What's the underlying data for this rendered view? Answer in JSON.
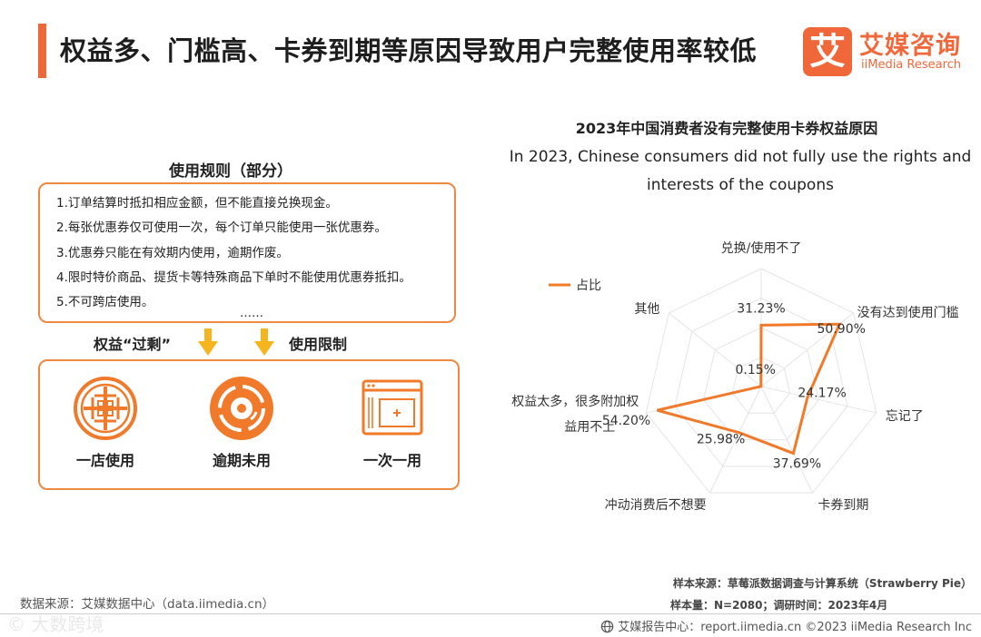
{
  "header": {
    "title": "权益多、门槛高、卡券到期等原因导致用户完整使用率较低",
    "accent_color": "#f0673a"
  },
  "logo": {
    "mark": "艾",
    "name_cn": "艾媒咨询",
    "name_en": "iiMedia Research"
  },
  "rules": {
    "title": "使用规则（部分）",
    "items": [
      "1.订单结算时抵扣相应金额，但不能直接兑换现金。",
      "2.每张优惠券仅可使用一次，每个订单只能使用一张优惠券。",
      "3.优惠券只能在有效期内使用，逾期作废。",
      "4.限时特价商品、提货卡等特殊商品下单时不能使用优惠券抵扣。",
      "5.不可跨店使用。"
    ],
    "more": "……"
  },
  "labels": {
    "left": "权益“过剩”",
    "right": "使用限制"
  },
  "limits": [
    {
      "label": "一店使用",
      "icon": "store-pattern-icon"
    },
    {
      "label": "逾期未用",
      "icon": "expired-disc-icon"
    },
    {
      "label": "一次一用",
      "icon": "single-use-window-icon"
    }
  ],
  "chart_data": {
    "type": "radar",
    "title": "2023年中国消费者没有完整使用卡券权益原因",
    "subtitle": "In 2023, Chinese consumers did not fully use the rights and interests of the coupons",
    "categories": [
      "兑换/使用不了",
      "没有达到使用门槛",
      "忘记了",
      "卡券到期",
      "冲动消费后不想要",
      "权益太多，很多附加权益用不上",
      "其他"
    ],
    "series": [
      {
        "name": "占比",
        "values": [
          31.23,
          50.9,
          24.17,
          37.69,
          25.98,
          54.2,
          0.15
        ],
        "color": "#f07a2a"
      }
    ],
    "value_labels": [
      "31.23%",
      "50.90%",
      "24.17%",
      "37.69%",
      "25.98%",
      "54.20%",
      "0.15%"
    ],
    "rmax": 60,
    "legend_position": "top-left",
    "grid": true
  },
  "footer": {
    "data_source": "数据来源：艾媒数据中心（data.iimedia.cn）",
    "sample_source": "样本来源：草莓派数据调查与计算系统（Strawberry Pie）",
    "sample_info": "样本量：N=2080；调研时间：2023年4月",
    "report_center": "艾媒报告中心：report.iimedia.cn  ©2023  iiMedia Research  Inc",
    "watermark": "© 大数跨境"
  }
}
